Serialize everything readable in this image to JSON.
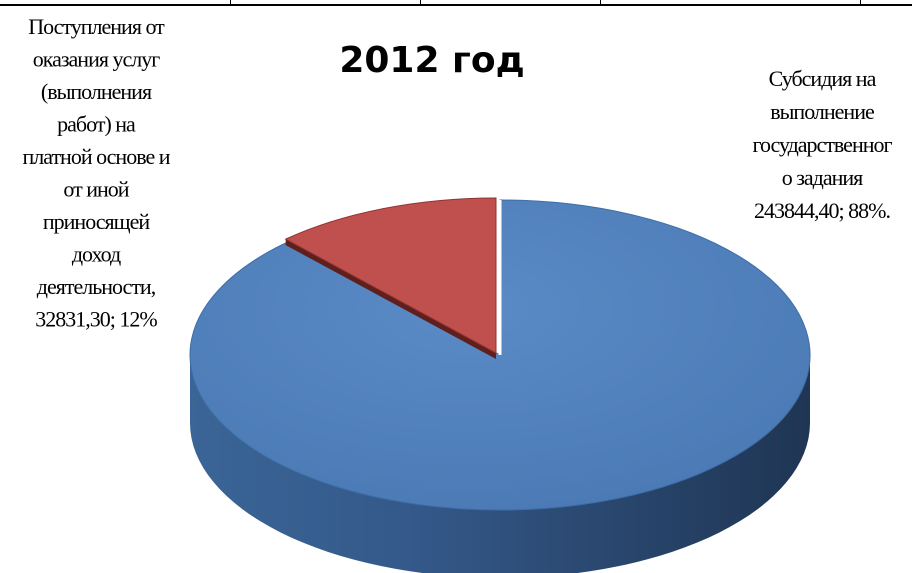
{
  "chart_data": {
    "type": "pie",
    "title": "2012 год",
    "slices": [
      {
        "label_lines": [
          "Субсидия на",
          "выполнение",
          "государственног",
          "о задания",
          "243844,40; 88%."
        ],
        "value": 243844.4,
        "percent": 88,
        "color": "#4F81BD"
      },
      {
        "label_lines": [
          "Поступления от",
          "оказания услуг",
          "(выполнения",
          "работ) на",
          "платной основе и",
          "от иной",
          "приносящей",
          "доход",
          "деятельности,",
          "32831,30;  12%"
        ],
        "value": 32831.3,
        "percent": 12,
        "color": "#C0504D"
      }
    ],
    "style": "3d-pie",
    "legend": "none"
  }
}
